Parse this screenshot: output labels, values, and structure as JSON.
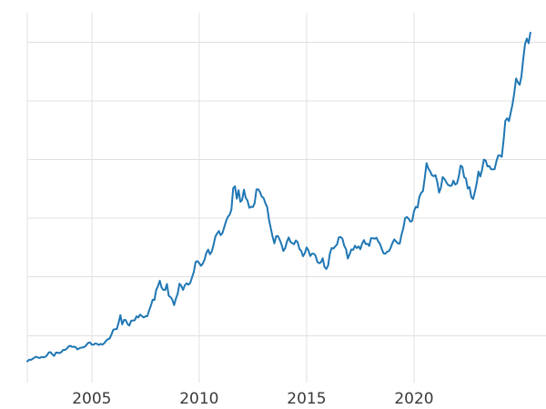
{
  "figure": {
    "background_color": "#ffffff"
  },
  "chart_data": {
    "type": "line",
    "title": "",
    "xlabel": "",
    "ylabel": "",
    "legend": false,
    "grid": true,
    "grid_color": "#e0e0e0",
    "line_color": "#1f77b4",
    "line_width": 2,
    "tick_label_color": "#3a3a3a",
    "x_tick_labels": [
      "2005",
      "2010",
      "2015",
      "2020"
    ],
    "x_tick_values": [
      2005,
      2010,
      2015,
      2020
    ],
    "y_gridlines": [
      500,
      1000,
      1500,
      2000,
      2500,
      3000
    ],
    "xlim": [
      2002,
      2026.1
    ],
    "ylim": [
      100,
      3250
    ],
    "x_start_year": 2002,
    "samples_per_year": 12,
    "values": [
      281,
      295,
      294,
      302,
      314,
      321,
      313,
      310,
      319,
      316,
      319,
      333,
      357,
      359,
      340,
      328,
      355,
      356,
      351,
      360,
      379,
      378,
      389,
      407,
      414,
      405,
      406,
      403,
      383,
      392,
      398,
      400,
      405,
      420,
      439,
      442,
      424,
      423,
      434,
      429,
      421,
      430,
      424,
      437,
      456,
      470,
      476,
      510,
      550,
      555,
      557,
      611,
      675,
      596,
      634,
      632,
      599,
      586,
      627,
      629,
      631,
      665,
      655,
      679,
      667,
      655,
      665,
      665,
      713,
      755,
      806,
      803,
      890,
      922,
      968,
      910,
      889,
      889,
      940,
      839,
      829,
      807,
      760,
      816,
      858,
      943,
      924,
      890,
      929,
      946,
      934,
      949,
      996,
      1043,
      1127,
      1135,
      1118,
      1095,
      1113,
      1148,
      1205,
      1233,
      1193,
      1216,
      1271,
      1342,
      1370,
      1391,
      1356,
      1373,
      1424,
      1474,
      1512,
      1529,
      1573,
      1756,
      1772,
      1666,
      1739,
      1640,
      1656,
      1743,
      1674,
      1650,
      1589,
      1598,
      1595,
      1630,
      1745,
      1747,
      1721,
      1684,
      1671,
      1627,
      1593,
      1487,
      1414,
      1343,
      1286,
      1347,
      1348,
      1316,
      1276,
      1221,
      1244,
      1300,
      1336,
      1298,
      1288,
      1279,
      1311,
      1296,
      1238,
      1222,
      1176,
      1202,
      1251,
      1227,
      1178,
      1198,
      1198,
      1181,
      1128,
      1117,
      1125,
      1159,
      1086,
      1068,
      1097,
      1200,
      1246,
      1242,
      1260,
      1276,
      1337,
      1340,
      1326,
      1266,
      1238,
      1157,
      1192,
      1234,
      1231,
      1266,
      1246,
      1260,
      1236,
      1283,
      1314,
      1280,
      1282,
      1264,
      1331,
      1330,
      1325,
      1334,
      1303,
      1281,
      1238,
      1201,
      1198,
      1215,
      1220,
      1250,
      1291,
      1320,
      1301,
      1286,
      1284,
      1359,
      1413,
      1500,
      1511,
      1495,
      1471,
      1479,
      1561,
      1597,
      1591,
      1683,
      1716,
      1732,
      1843,
      1969,
      1922,
      1900,
      1866,
      1858,
      1867,
      1808,
      1718,
      1760,
      1850,
      1835,
      1807,
      1784,
      1777,
      1777,
      1820,
      1787,
      1797,
      1856,
      1948,
      1937,
      1850,
      1837,
      1753,
      1765,
      1681,
      1664,
      1725,
      1797,
      1898,
      1855,
      1912,
      1999,
      1992,
      1942,
      1945,
      1918,
      1916,
      1918,
      1984,
      2034,
      2034,
      2023,
      2160,
      2330,
      2351,
      2327,
      2398,
      2470,
      2568,
      2690,
      2657,
      2636,
      2710,
      2857,
      2983,
      3030,
      2990,
      3080
    ]
  }
}
